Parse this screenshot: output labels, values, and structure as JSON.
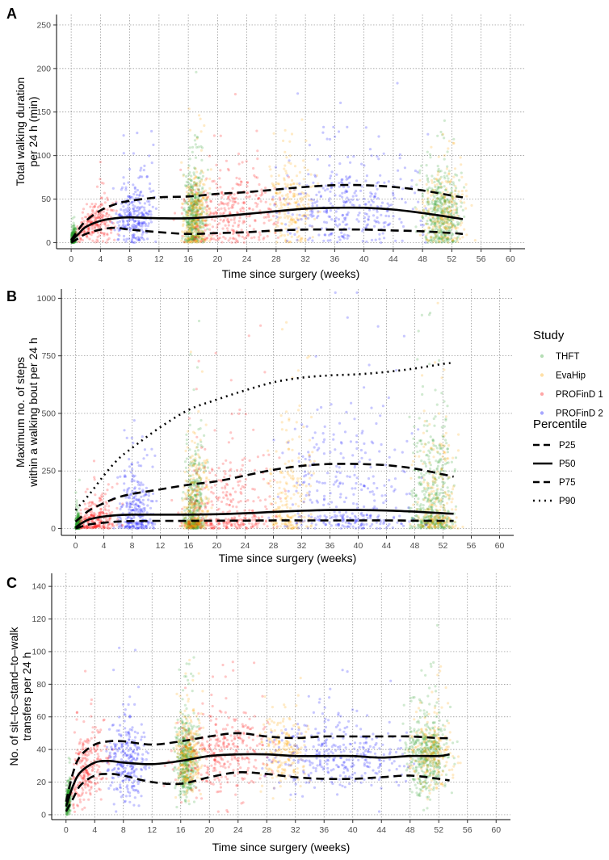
{
  "legend": {
    "study_title": "Study",
    "study_items": [
      {
        "label": "THFT",
        "color": "#2ca02c"
      },
      {
        "label": "EvaHip",
        "color": "#ffa500"
      },
      {
        "label": "PROFinD 1",
        "color": "#ff0000"
      },
      {
        "label": "PROFinD 2",
        "color": "#0000ff"
      }
    ],
    "percentile_title": "Percentile",
    "percentile_items": [
      {
        "label": "P25",
        "dash": "dashed"
      },
      {
        "label": "P50",
        "dash": "solid"
      },
      {
        "label": "P75",
        "dash": "dashed"
      },
      {
        "label": "P90",
        "dash": "dotted"
      }
    ]
  },
  "chart_data": [
    {
      "panel": "A",
      "type": "scatter",
      "xlabel": "Time since surgery (weeks)",
      "ylabel_lines": [
        "Total walking duration",
        "per 24 h (min)"
      ],
      "xlim": [
        -2,
        62
      ],
      "ylim": [
        -7,
        262
      ],
      "xticks": [
        0,
        4,
        8,
        12,
        16,
        20,
        24,
        28,
        32,
        36,
        40,
        44,
        48,
        52,
        56,
        60
      ],
      "yticks": [
        0,
        50,
        100,
        150,
        200,
        250
      ],
      "series": [
        {
          "name": "P25",
          "x": [
            0,
            1,
            2,
            4,
            6,
            8,
            12,
            16,
            20,
            24,
            28,
            32,
            36,
            40,
            44,
            48,
            52,
            53.5
          ],
          "values": [
            0,
            5,
            10,
            15,
            17,
            15,
            12,
            10,
            11,
            12,
            14,
            15,
            15,
            15,
            14,
            13,
            11,
            10
          ]
        },
        {
          "name": "P50",
          "x": [
            0,
            1,
            2,
            4,
            6,
            8,
            12,
            16,
            20,
            24,
            28,
            32,
            36,
            40,
            44,
            48,
            52,
            53.5
          ],
          "values": [
            2,
            10,
            18,
            25,
            28,
            29,
            28,
            28,
            30,
            33,
            36,
            39,
            40,
            40,
            38,
            34,
            29,
            27
          ]
        },
        {
          "name": "P75",
          "x": [
            0,
            1,
            2,
            4,
            6,
            8,
            12,
            16,
            20,
            24,
            28,
            32,
            36,
            40,
            44,
            48,
            52,
            53.5
          ],
          "values": [
            3,
            15,
            25,
            37,
            44,
            48,
            52,
            53,
            56,
            58,
            61,
            64,
            66,
            66,
            64,
            60,
            54,
            52
          ]
        }
      ]
    },
    {
      "panel": "B",
      "type": "scatter",
      "xlabel": "Time since surgery (weeks)",
      "ylabel_lines": [
        "Maximum no. of steps",
        "within a walking bout per 24 h"
      ],
      "xlim": [
        -2,
        62
      ],
      "ylim": [
        -30,
        1040
      ],
      "xticks": [
        0,
        4,
        8,
        12,
        16,
        20,
        24,
        28,
        32,
        36,
        40,
        44,
        48,
        52,
        56,
        60
      ],
      "yticks": [
        0,
        250,
        500,
        750,
        1000
      ],
      "series": [
        {
          "name": "P25",
          "x": [
            0,
            1,
            2,
            4,
            6,
            8,
            12,
            16,
            20,
            24,
            28,
            32,
            36,
            40,
            44,
            48,
            52,
            53.5
          ],
          "values": [
            0,
            10,
            18,
            25,
            30,
            32,
            33,
            33,
            34,
            34,
            35,
            35,
            35,
            35,
            35,
            34,
            33,
            33
          ]
        },
        {
          "name": "P50",
          "x": [
            0,
            1,
            2,
            4,
            6,
            8,
            12,
            16,
            20,
            24,
            28,
            32,
            36,
            40,
            44,
            48,
            52,
            53.5
          ],
          "values": [
            5,
            25,
            40,
            52,
            58,
            60,
            60,
            60,
            62,
            66,
            72,
            77,
            80,
            80,
            78,
            73,
            66,
            64
          ]
        },
        {
          "name": "P75",
          "x": [
            0,
            1,
            2,
            4,
            6,
            8,
            12,
            16,
            20,
            24,
            28,
            32,
            36,
            40,
            44,
            48,
            52,
            53.5
          ],
          "values": [
            30,
            55,
            80,
            110,
            135,
            150,
            170,
            190,
            205,
            230,
            255,
            272,
            280,
            280,
            275,
            260,
            235,
            225
          ]
        },
        {
          "name": "P90",
          "x": [
            0,
            2,
            4,
            6,
            8,
            12,
            16,
            20,
            24,
            28,
            32,
            36,
            40,
            44,
            48,
            52,
            53.5
          ],
          "values": [
            80,
            150,
            230,
            300,
            350,
            440,
            515,
            560,
            600,
            635,
            655,
            665,
            670,
            680,
            695,
            715,
            720
          ]
        }
      ]
    },
    {
      "panel": "C",
      "type": "scatter",
      "xlabel": "Time since surgery (weeks)",
      "ylabel_lines": [
        "No. of sit–to–stand–to–walk",
        "transfers per 24 h"
      ],
      "xlim": [
        -2,
        62
      ],
      "ylim": [
        -3,
        148
      ],
      "xticks": [
        0,
        4,
        8,
        12,
        16,
        20,
        24,
        28,
        32,
        36,
        40,
        44,
        48,
        52,
        56,
        60
      ],
      "yticks": [
        0,
        20,
        40,
        60,
        80,
        100,
        120,
        140
      ],
      "series": [
        {
          "name": "P25",
          "x": [
            0,
            1,
            2,
            4,
            6,
            8,
            12,
            16,
            20,
            24,
            28,
            32,
            36,
            40,
            44,
            48,
            52,
            53.5
          ],
          "values": [
            2,
            10,
            18,
            24,
            25,
            24,
            20,
            19,
            23,
            26,
            25,
            23,
            22,
            22,
            23,
            24,
            22,
            21
          ]
        },
        {
          "name": "P50",
          "x": [
            0,
            1,
            2,
            4,
            6,
            8,
            12,
            16,
            20,
            24,
            28,
            32,
            36,
            40,
            44,
            48,
            52,
            53.5
          ],
          "values": [
            5,
            18,
            26,
            32,
            33,
            32,
            31,
            33,
            36,
            37,
            37,
            36,
            36,
            36,
            35,
            36,
            36,
            37
          ]
        },
        {
          "name": "P75",
          "x": [
            0,
            1,
            2,
            4,
            6,
            8,
            12,
            16,
            20,
            24,
            28,
            32,
            36,
            40,
            44,
            48,
            52,
            53.5
          ],
          "values": [
            8,
            26,
            36,
            43,
            45,
            45,
            43,
            45,
            48,
            50,
            48,
            47,
            48,
            48,
            48,
            48,
            47,
            47
          ]
        }
      ]
    }
  ]
}
